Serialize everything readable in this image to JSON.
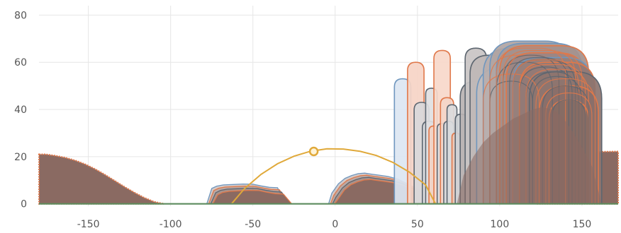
{
  "chart_data": {
    "type": "area",
    "title": "",
    "xlabel": "",
    "ylabel": "",
    "xlim": [
      -180,
      172
    ],
    "ylim": [
      -1,
      84
    ],
    "grid": true,
    "x_ticks": [
      -150,
      -100,
      -50,
      0,
      50,
      100,
      150
    ],
    "x_tick_labels": [
      "-150",
      "-100",
      "-50",
      "0",
      "50",
      "100",
      "150"
    ],
    "y_ticks": [
      0,
      20,
      40,
      60,
      80
    ],
    "y_tick_labels": [
      "0",
      "20",
      "40",
      "60",
      "80"
    ],
    "colors": {
      "fill_main": "#8a6a62",
      "edge_main": "#7d5a52",
      "orange": "#e0784a",
      "blue": "#6f97bf",
      "gray": "#5d6670",
      "gold": "#e0a93a",
      "green": "#5c8c5e"
    },
    "sides": [
      {
        "x": [
          -180,
          -176,
          -170,
          -164,
          -158,
          -152,
          -146,
          -140,
          -134,
          -128,
          -122,
          -116,
          -110,
          -104
        ],
        "y": [
          21,
          21,
          20.4,
          19.6,
          18.4,
          16.8,
          14.8,
          12.4,
          9.8,
          7.2,
          4.8,
          2.6,
          0.9,
          0
        ]
      },
      {
        "x": [
          122,
          128,
          134,
          140,
          146,
          152,
          158,
          164,
          172
        ],
        "y": [
          17.5,
          18.6,
          19.5,
          20.3,
          21,
          21.5,
          21.9,
          22.1,
          22.2
        ]
      }
    ],
    "mounds": [
      {
        "x": [
          -78,
          -75,
          -72,
          -68,
          -62,
          -56,
          -50,
          -45,
          -40,
          -35,
          -30
        ],
        "y": [
          0,
          6.5,
          7.5,
          8,
          8.2,
          8.4,
          8.3,
          7.6,
          7,
          6.8,
          0
        ]
      },
      {
        "x": [
          -4,
          -2,
          2,
          6,
          10,
          14,
          18,
          22,
          26,
          32,
          38,
          44,
          50,
          56,
          62,
          70
        ],
        "y": [
          0,
          4.5,
          8.5,
          10.8,
          12,
          12.8,
          13,
          12.6,
          12.2,
          11.6,
          10.5,
          8.5,
          6.4,
          4.2,
          2,
          0
        ]
      }
    ],
    "arch_clusters": [
      {
        "color": "orange",
        "x0": 102,
        "x1": 110,
        "top": 64,
        "fill": false
      },
      {
        "color": "blue",
        "x0": 86,
        "x1": 114,
        "top": 62,
        "fill": true
      }
    ],
    "arches": [
      {
        "x0": 36,
        "x1": 46,
        "top": 53,
        "color": "blue",
        "fill": "#dce6f2"
      },
      {
        "x0": 44,
        "x1": 54,
        "top": 60,
        "color": "orange",
        "fill": "#f6d4c6"
      },
      {
        "x0": 48,
        "x1": 57,
        "top": 43,
        "color": "gray",
        "fill": "#d8d8da"
      },
      {
        "x0": 53,
        "x1": 61,
        "top": 35,
        "color": "gray",
        "fill": "#d9d9dc"
      },
      {
        "x0": 55,
        "x1": 62,
        "top": 49,
        "color": "gray",
        "fill": "#e0e0e2"
      },
      {
        "x0": 57,
        "x1": 63,
        "top": 33,
        "color": "orange",
        "fill": "#f1d3c5"
      },
      {
        "x0": 60,
        "x1": 70,
        "top": 65,
        "color": "orange",
        "fill": "#f7d8ca"
      },
      {
        "x0": 62,
        "x1": 68,
        "top": 34,
        "color": "gray",
        "fill": "#dddddf"
      },
      {
        "x0": 64,
        "x1": 72,
        "top": 45,
        "color": "orange",
        "fill": "#f4d6c9"
      },
      {
        "x0": 66,
        "x1": 72,
        "top": 35,
        "color": "gray",
        "fill": "#d7d9dc"
      },
      {
        "x0": 68,
        "x1": 74,
        "top": 42,
        "color": "gray",
        "fill": "#dadbdd"
      },
      {
        "x0": 71,
        "x1": 76,
        "top": 30,
        "color": "orange",
        "fill": "#ecc9b9"
      },
      {
        "x0": 73,
        "x1": 80,
        "top": 38,
        "color": "gray",
        "fill": "#cfd2d6"
      },
      {
        "x0": 76,
        "x1": 96,
        "top": 52,
        "color": "gray",
        "fill": "#b9b2b2"
      },
      {
        "x0": 79,
        "x1": 92,
        "top": 66,
        "color": "gray",
        "fill": "#c9c4c4"
      },
      {
        "x0": 82,
        "x1": 105,
        "top": 63,
        "color": "gray",
        "fill": "#bfb7b6"
      },
      {
        "x0": 86,
        "x1": 128,
        "top": 58,
        "color": "blue",
        "fill": "#c1bcbd"
      },
      {
        "x0": 90,
        "x1": 140,
        "top": 66,
        "color": "blue",
        "fill": "#b8aead"
      },
      {
        "x0": 94,
        "x1": 144,
        "top": 69,
        "color": "blue",
        "fill": "#b0a4a2"
      },
      {
        "x0": 98,
        "x1": 150,
        "top": 68,
        "color": "blue",
        "fill": "#a89a98"
      },
      {
        "x0": 100,
        "x1": 154,
        "top": 67,
        "color": "orange",
        "fill": "#a4918d"
      },
      {
        "x0": 104,
        "x1": 152,
        "top": 64,
        "color": "orange",
        "fill": "#9c8682"
      },
      {
        "x0": 108,
        "x1": 156,
        "top": 62,
        "color": "blue",
        "fill": "#97807b"
      },
      {
        "x0": 112,
        "x1": 158,
        "top": 60,
        "color": "orange",
        "fill": "#927a75"
      },
      {
        "x0": 118,
        "x1": 162,
        "top": 56,
        "color": "gray",
        "fill": "#8d746f"
      },
      {
        "x0": 124,
        "x1": 160,
        "top": 50,
        "color": "orange",
        "fill": "#8a6f69"
      },
      {
        "x0": 130,
        "x1": 154,
        "top": 44,
        "color": "orange",
        "fill": "#876b64"
      }
    ],
    "highlight": {
      "x": [
        -63,
        -55,
        -45,
        -35,
        -25,
        -15,
        -5,
        5,
        15,
        25,
        35,
        45,
        55,
        61
      ],
      "y": [
        0,
        6.5,
        12.5,
        17,
        20.2,
        22.3,
        23.3,
        23.2,
        22.3,
        20.5,
        17.6,
        13.5,
        8,
        0
      ],
      "marker": {
        "x": -13,
        "y": 22.2
      }
    },
    "baseline": {
      "x": [
        -180,
        172
      ],
      "y": [
        0,
        0
      ]
    }
  }
}
